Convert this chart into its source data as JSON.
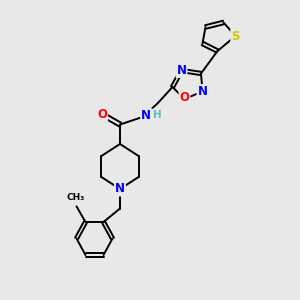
{
  "background_color": "#e8e8e8",
  "bond_color": "#000000",
  "atom_colors": {
    "N": "#0000ff",
    "O": "#ff0000",
    "S": "#cccc00",
    "H": "#5fbfbf",
    "C": "#000000"
  },
  "figsize": [
    3.0,
    3.0
  ],
  "dpi": 100
}
